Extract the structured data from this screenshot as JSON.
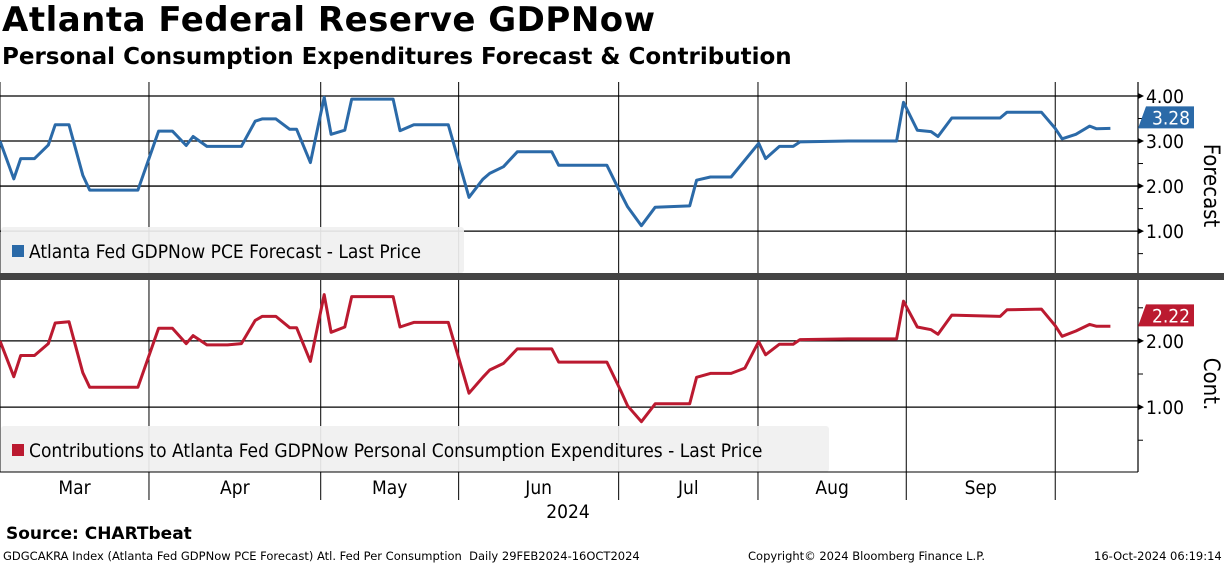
{
  "header": {
    "title": "Atlanta Federal Reserve GDPNow",
    "subtitle": "Personal Consumption Expenditures Forecast & Contribution"
  },
  "footer": {
    "source": "Source: CHARTbeat",
    "description": "GDGCAKRA Index (Atlanta Fed GDPNow PCE Forecast) Atl. Fed Per Consumption  Daily 29FEB2024-16OCT2024",
    "copyright": "Copyright© 2024 Bloomberg Finance L.P.",
    "timestamp": "16-Oct-2024 06:19:14"
  },
  "colors": {
    "forecast": "#2b6aa8",
    "contribution": "#bb1a30",
    "legend_bg": "#f0f0f0",
    "separator": "#444444"
  },
  "chart_data": [
    {
      "type": "line",
      "panel": "top",
      "ylabel": "Forecast",
      "legend": "Atlanta Fed GDPNow PCE Forecast - Last Price",
      "legend_position": "bottom-left",
      "last_value_label": "3.28",
      "ylim": [
        0.07,
        4.31
      ],
      "yticks": [
        {
          "v": 4,
          "label": "4.00"
        },
        {
          "v": 3,
          "label": "3.00"
        },
        {
          "v": 2,
          "label": "2.00"
        },
        {
          "v": 1,
          "label": "1.00"
        }
      ],
      "x_unit": "business days since 29-Feb-2024",
      "series": [
        {
          "name": "Atlanta Fed GDPNow PCE Forecast",
          "points": [
            [
              0,
              3.0
            ],
            [
              2,
              2.16
            ],
            [
              3,
              2.61
            ],
            [
              5,
              2.61
            ],
            [
              7,
              2.91
            ],
            [
              8,
              3.36
            ],
            [
              10,
              3.36
            ],
            [
              12,
              2.24
            ],
            [
              13,
              1.91
            ],
            [
              20,
              1.91
            ],
            [
              23,
              3.22
            ],
            [
              25,
              3.22
            ],
            [
              27,
              2.9
            ],
            [
              28,
              3.1
            ],
            [
              30,
              2.88
            ],
            [
              35,
              2.88
            ],
            [
              37,
              3.44
            ],
            [
              38,
              3.49
            ],
            [
              40,
              3.49
            ],
            [
              42,
              3.26
            ],
            [
              43,
              3.26
            ],
            [
              45,
              2.52
            ],
            [
              47,
              3.97
            ],
            [
              48,
              3.15
            ],
            [
              50,
              3.24
            ],
            [
              51,
              3.93
            ],
            [
              57,
              3.93
            ],
            [
              58,
              3.23
            ],
            [
              60,
              3.36
            ],
            [
              65,
              3.36
            ],
            [
              68,
              1.75
            ],
            [
              70,
              2.15
            ],
            [
              71,
              2.28
            ],
            [
              73,
              2.43
            ],
            [
              75,
              2.76
            ],
            [
              80,
              2.76
            ],
            [
              81,
              2.46
            ],
            [
              88,
              2.46
            ],
            [
              90,
              1.84
            ],
            [
              91,
              1.54
            ],
            [
              93,
              1.12
            ],
            [
              95,
              1.53
            ],
            [
              100,
              1.56
            ],
            [
              101,
              2.13
            ],
            [
              103,
              2.2
            ],
            [
              106,
              2.2
            ],
            [
              110,
              2.95
            ],
            [
              111,
              2.61
            ],
            [
              113,
              2.88
            ],
            [
              115,
              2.88
            ],
            [
              116,
              2.98
            ],
            [
              123,
              3.0
            ],
            [
              130,
              3.0
            ],
            [
              131,
              3.86
            ],
            [
              133,
              3.24
            ],
            [
              135,
              3.21
            ],
            [
              136,
              3.1
            ],
            [
              138,
              3.51
            ],
            [
              145,
              3.51
            ],
            [
              146,
              3.64
            ],
            [
              151,
              3.64
            ],
            [
              153,
              3.28
            ],
            [
              154,
              3.05
            ],
            [
              156,
              3.15
            ],
            [
              158,
              3.33
            ],
            [
              159,
              3.27
            ],
            [
              161,
              3.28
            ]
          ]
        }
      ]
    },
    {
      "type": "line",
      "panel": "bottom",
      "ylabel": "Cont.",
      "legend": "Contributions to Atlanta Fed GDPNow Personal Consumption Expenditures - Last Price",
      "legend_position": "bottom-left",
      "last_value_label": "2.22",
      "ylim": [
        0.02,
        2.92
      ],
      "yticks": [
        {
          "v": 2,
          "label": "2.00"
        },
        {
          "v": 1,
          "label": "1.00"
        }
      ],
      "x_unit": "business days since 29-Feb-2024",
      "series": [
        {
          "name": "Contributions to Atlanta Fed GDPNow PCE",
          "points": [
            [
              0,
              2.0
            ],
            [
              2,
              1.46
            ],
            [
              3,
              1.78
            ],
            [
              5,
              1.78
            ],
            [
              7,
              1.96
            ],
            [
              8,
              2.27
            ],
            [
              10,
              2.29
            ],
            [
              12,
              1.52
            ],
            [
              13,
              1.3
            ],
            [
              20,
              1.3
            ],
            [
              23,
              2.19
            ],
            [
              25,
              2.19
            ],
            [
              27,
              1.96
            ],
            [
              28,
              2.08
            ],
            [
              30,
              1.94
            ],
            [
              33,
              1.94
            ],
            [
              35,
              1.96
            ],
            [
              37,
              2.31
            ],
            [
              38,
              2.37
            ],
            [
              40,
              2.37
            ],
            [
              42,
              2.2
            ],
            [
              43,
              2.2
            ],
            [
              45,
              1.69
            ],
            [
              47,
              2.7
            ],
            [
              48,
              2.13
            ],
            [
              50,
              2.21
            ],
            [
              51,
              2.67
            ],
            [
              57,
              2.67
            ],
            [
              58,
              2.21
            ],
            [
              60,
              2.28
            ],
            [
              65,
              2.28
            ],
            [
              68,
              1.21
            ],
            [
              70,
              1.45
            ],
            [
              71,
              1.56
            ],
            [
              73,
              1.66
            ],
            [
              75,
              1.88
            ],
            [
              80,
              1.88
            ],
            [
              81,
              1.68
            ],
            [
              88,
              1.68
            ],
            [
              90,
              1.25
            ],
            [
              91,
              1.02
            ],
            [
              93,
              0.78
            ],
            [
              95,
              1.05
            ],
            [
              100,
              1.05
            ],
            [
              101,
              1.45
            ],
            [
              103,
              1.51
            ],
            [
              106,
              1.51
            ],
            [
              108,
              1.59
            ],
            [
              110,
              1.99
            ],
            [
              111,
              1.79
            ],
            [
              113,
              1.95
            ],
            [
              115,
              1.95
            ],
            [
              116,
              2.02
            ],
            [
              123,
              2.03
            ],
            [
              130,
              2.03
            ],
            [
              131,
              2.6
            ],
            [
              133,
              2.21
            ],
            [
              135,
              2.17
            ],
            [
              136,
              2.1
            ],
            [
              138,
              2.39
            ],
            [
              145,
              2.37
            ],
            [
              146,
              2.47
            ],
            [
              151,
              2.48
            ],
            [
              153,
              2.23
            ],
            [
              154,
              2.07
            ],
            [
              156,
              2.15
            ],
            [
              158,
              2.25
            ],
            [
              159,
              2.22
            ],
            [
              161,
              2.22
            ]
          ]
        }
      ]
    }
  ],
  "x_axis": {
    "xlim": [
      0,
      165
    ],
    "month_boundaries": [
      21.6,
      46.5,
      66.5,
      89.7,
      109.9,
      131.4,
      153
    ],
    "month_labels": [
      "Mar",
      "Apr",
      "May",
      "Jun",
      "Jul",
      "Aug",
      "Sep"
    ],
    "year_label": "2024"
  }
}
